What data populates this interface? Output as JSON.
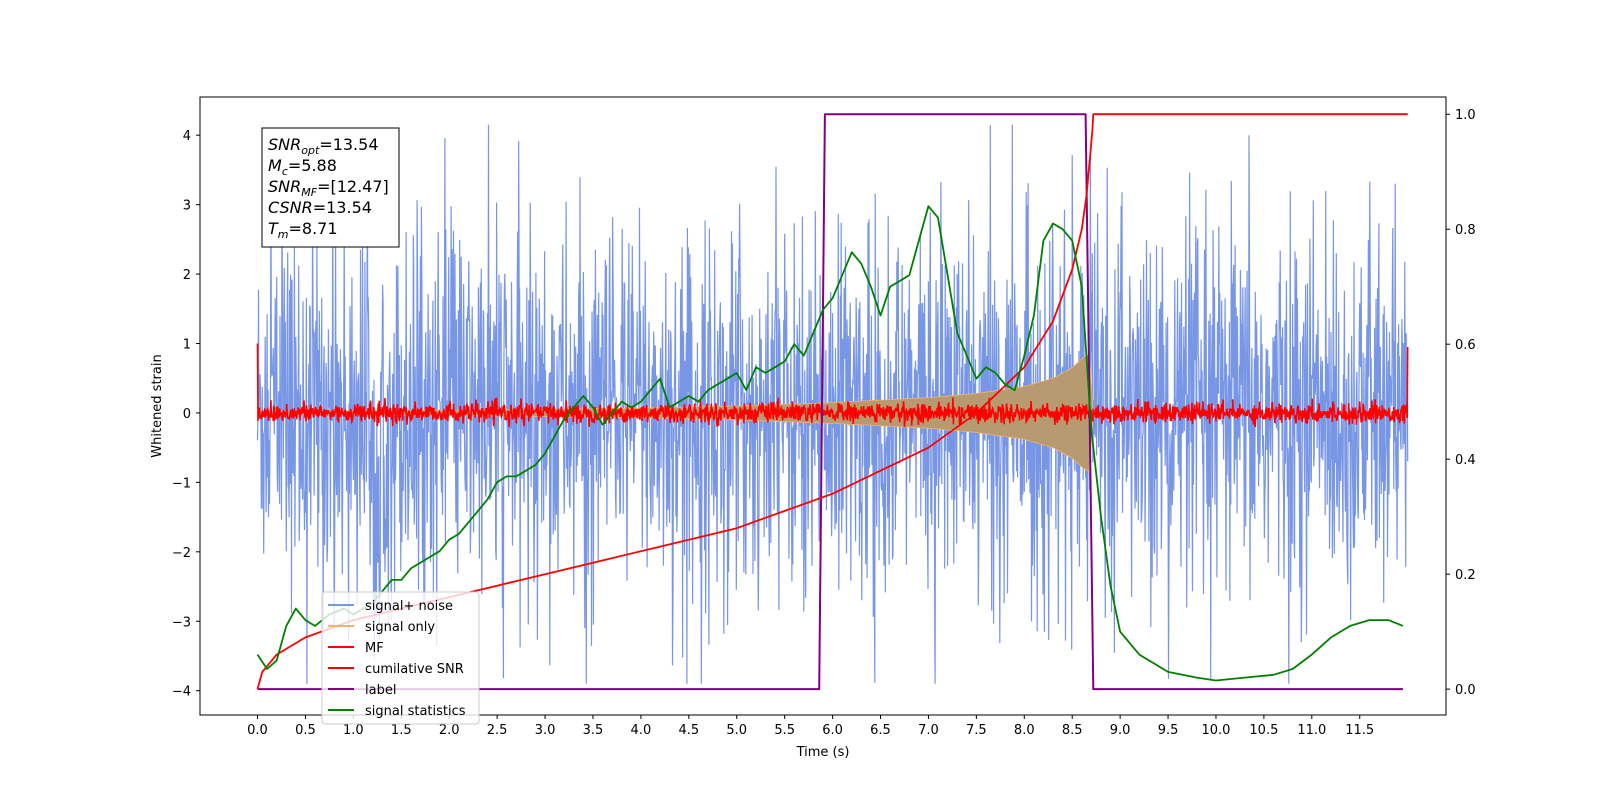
{
  "chart_data": {
    "type": "line",
    "xlabel": "Time (s)",
    "ylabel": "Whitened strain",
    "xlim": [
      -0.6,
      12.4
    ],
    "ylim": [
      -4.35,
      4.55
    ],
    "y2lim": [
      -0.045,
      1.03
    ],
    "x_ticks": [
      0.0,
      0.5,
      1.0,
      1.5,
      2.0,
      2.5,
      3.0,
      3.5,
      4.0,
      4.5,
      5.0,
      5.5,
      6.0,
      6.5,
      7.0,
      7.5,
      8.0,
      8.5,
      9.0,
      9.5,
      10.0,
      10.5,
      11.0,
      11.5
    ],
    "x_tick_labels": [
      "0.0",
      "0.5",
      "1.0",
      "1.5",
      "2.0",
      "2.5",
      "3.0",
      "3.5",
      "4.0",
      "4.5",
      "5.0",
      "5.5",
      "6.0",
      "6.5",
      "7.0",
      "7.5",
      "8.0",
      "8.5",
      "9.0",
      "9.5",
      "10.0",
      "10.5",
      "11.0",
      "11.5"
    ],
    "y_ticks": [
      -4,
      -3,
      -2,
      -1,
      0,
      1,
      2,
      3,
      4
    ],
    "y_tick_labels": [
      "−4",
      "−3",
      "−2",
      "−1",
      "0",
      "1",
      "2",
      "3",
      "4"
    ],
    "y2_ticks": [
      0.0,
      0.2,
      0.4,
      0.6,
      0.8,
      1.0
    ],
    "y2_tick_labels": [
      "0.0",
      "0.2",
      "0.4",
      "0.6",
      "0.8",
      "1.0"
    ],
    "legend_placement": "lower-left",
    "grid": false,
    "annotation": {
      "lines": [
        {
          "var": "SNR",
          "sub": "opt",
          "rest": "=13.54"
        },
        {
          "var": "M",
          "sub": "c",
          "rest": "=5.88"
        },
        {
          "var": "SNR",
          "sub": "MF",
          "rest": "=[12.47]"
        },
        {
          "var": "CSNR",
          "sub": "",
          "rest": "=13.54"
        },
        {
          "var": "T",
          "sub": "m",
          "rest": "=8.71"
        }
      ]
    },
    "series": [
      {
        "name": "signal+ noise",
        "color": "#7896e6",
        "axis": "left",
        "style": "noise",
        "x_start": 0.0,
        "x_end": 12.0,
        "typical_band": [
          -1.5,
          1.5
        ],
        "peak_range": [
          -3.9,
          4.15
        ]
      },
      {
        "name": "signal only",
        "color": "#f5b070",
        "axis": "left",
        "style": "chirp-envelope",
        "x": [
          0.0,
          1.0,
          2.0,
          3.0,
          4.0,
          5.0,
          6.0,
          7.0,
          7.5,
          8.0,
          8.3,
          8.5,
          8.6,
          8.68,
          8.72
        ],
        "amplitude": [
          0.02,
          0.03,
          0.04,
          0.05,
          0.07,
          0.1,
          0.15,
          0.22,
          0.28,
          0.38,
          0.5,
          0.65,
          0.78,
          0.85,
          0.0
        ]
      },
      {
        "name": "MF",
        "color": "#ff0000",
        "axis": "left",
        "style": "noise-small",
        "x_start": 0.0,
        "x_end": 12.0,
        "typical_band": [
          -0.12,
          0.12
        ],
        "edge_values": [
          1.0,
          0.95
        ]
      },
      {
        "name": "cumilative SNR",
        "color": "#ff0000",
        "axis": "right",
        "x": [
          0.0,
          0.05,
          0.2,
          0.5,
          1.0,
          1.5,
          2.0,
          2.5,
          3.0,
          3.5,
          4.0,
          4.5,
          5.0,
          5.5,
          6.0,
          6.5,
          7.0,
          7.5,
          8.0,
          8.3,
          8.5,
          8.6,
          8.65,
          8.71,
          8.72,
          12.0
        ],
        "values": [
          0.0,
          0.03,
          0.06,
          0.09,
          0.12,
          0.14,
          0.16,
          0.18,
          0.2,
          0.22,
          0.24,
          0.26,
          0.28,
          0.31,
          0.34,
          0.38,
          0.42,
          0.48,
          0.56,
          0.64,
          0.73,
          0.8,
          0.86,
          0.97,
          1.0,
          1.0
        ]
      },
      {
        "name": "label",
        "color": "#800080",
        "axis": "right",
        "x": [
          0.0,
          5.86,
          5.92,
          8.64,
          8.72,
          11.95
        ],
        "values": [
          0.0,
          0.0,
          1.0,
          1.0,
          0.0,
          0.0
        ]
      },
      {
        "name": "signal statistics",
        "color": "#008000",
        "axis": "right",
        "x": [
          0.0,
          0.1,
          0.2,
          0.3,
          0.4,
          0.5,
          0.6,
          0.75,
          0.9,
          1.0,
          1.2,
          1.3,
          1.4,
          1.5,
          1.6,
          1.7,
          1.8,
          1.9,
          2.0,
          2.1,
          2.2,
          2.3,
          2.4,
          2.5,
          2.6,
          2.7,
          2.8,
          2.9,
          3.0,
          3.1,
          3.2,
          3.3,
          3.4,
          3.5,
          3.6,
          3.7,
          3.8,
          3.9,
          4.0,
          4.1,
          4.2,
          4.3,
          4.4,
          4.5,
          4.6,
          4.7,
          4.8,
          4.9,
          5.0,
          5.1,
          5.2,
          5.3,
          5.4,
          5.5,
          5.6,
          5.7,
          5.8,
          5.9,
          6.0,
          6.1,
          6.2,
          6.3,
          6.4,
          6.5,
          6.6,
          6.7,
          6.8,
          6.9,
          7.0,
          7.1,
          7.2,
          7.3,
          7.4,
          7.5,
          7.6,
          7.7,
          7.8,
          7.9,
          8.0,
          8.1,
          8.2,
          8.3,
          8.4,
          8.5,
          8.6,
          8.7,
          8.8,
          8.9,
          9.0,
          9.2,
          9.5,
          9.8,
          10.0,
          10.3,
          10.6,
          10.8,
          11.0,
          11.2,
          11.4,
          11.6,
          11.8,
          11.95
        ],
        "values": [
          0.06,
          0.035,
          0.05,
          0.11,
          0.14,
          0.12,
          0.11,
          0.13,
          0.14,
          0.13,
          0.15,
          0.17,
          0.19,
          0.19,
          0.21,
          0.22,
          0.23,
          0.24,
          0.26,
          0.27,
          0.29,
          0.31,
          0.33,
          0.36,
          0.37,
          0.37,
          0.38,
          0.39,
          0.41,
          0.44,
          0.47,
          0.49,
          0.51,
          0.49,
          0.46,
          0.48,
          0.5,
          0.49,
          0.5,
          0.52,
          0.54,
          0.49,
          0.5,
          0.51,
          0.5,
          0.52,
          0.53,
          0.54,
          0.55,
          0.52,
          0.56,
          0.55,
          0.56,
          0.57,
          0.6,
          0.58,
          0.62,
          0.66,
          0.68,
          0.72,
          0.76,
          0.74,
          0.7,
          0.65,
          0.7,
          0.71,
          0.72,
          0.78,
          0.84,
          0.82,
          0.72,
          0.62,
          0.58,
          0.54,
          0.56,
          0.55,
          0.53,
          0.52,
          0.58,
          0.65,
          0.78,
          0.81,
          0.8,
          0.78,
          0.7,
          0.45,
          0.3,
          0.18,
          0.1,
          0.06,
          0.03,
          0.02,
          0.015,
          0.02,
          0.025,
          0.035,
          0.06,
          0.09,
          0.11,
          0.12,
          0.12,
          0.11
        ]
      }
    ]
  }
}
